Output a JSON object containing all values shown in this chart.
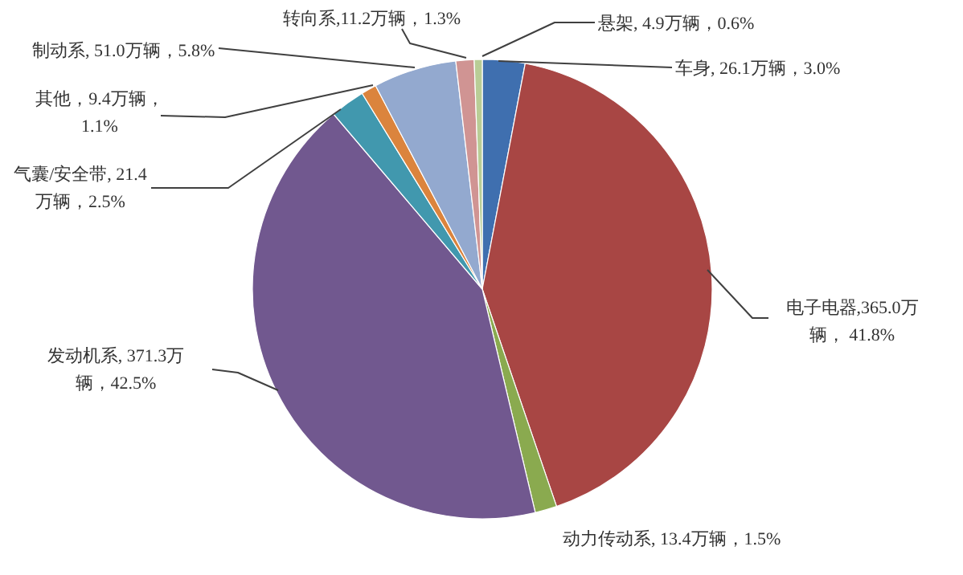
{
  "chart_data": {
    "type": "pie",
    "categories": [
      "车身",
      "电子电器",
      "动力传动系",
      "发动机系",
      "气囊/安全带",
      "其他",
      "制动系",
      "转向系",
      "悬架"
    ],
    "values": [
      26.1,
      365.0,
      13.4,
      371.3,
      21.4,
      9.4,
      51.0,
      11.2,
      4.9
    ],
    "colors": [
      "#3f6faf",
      "#a84644",
      "#8aaa4f",
      "#71588f",
      "#4198ae",
      "#db843d",
      "#93a9cf",
      "#d09493",
      "#b9cd96"
    ],
    "value_labels": [
      ", 26.1万辆，3.0%",
      ",365.0万辆， 41.8%",
      ", 13.4万辆，1.5%",
      ", 371.3万辆，42.5%",
      ", 21.4万辆，2.5%",
      "，9.4万辆，1.1%",
      ", 51.0万辆，5.8%",
      ",11.2万辆，1.3%",
      ", 4.9万辆，0.6%"
    ]
  }
}
